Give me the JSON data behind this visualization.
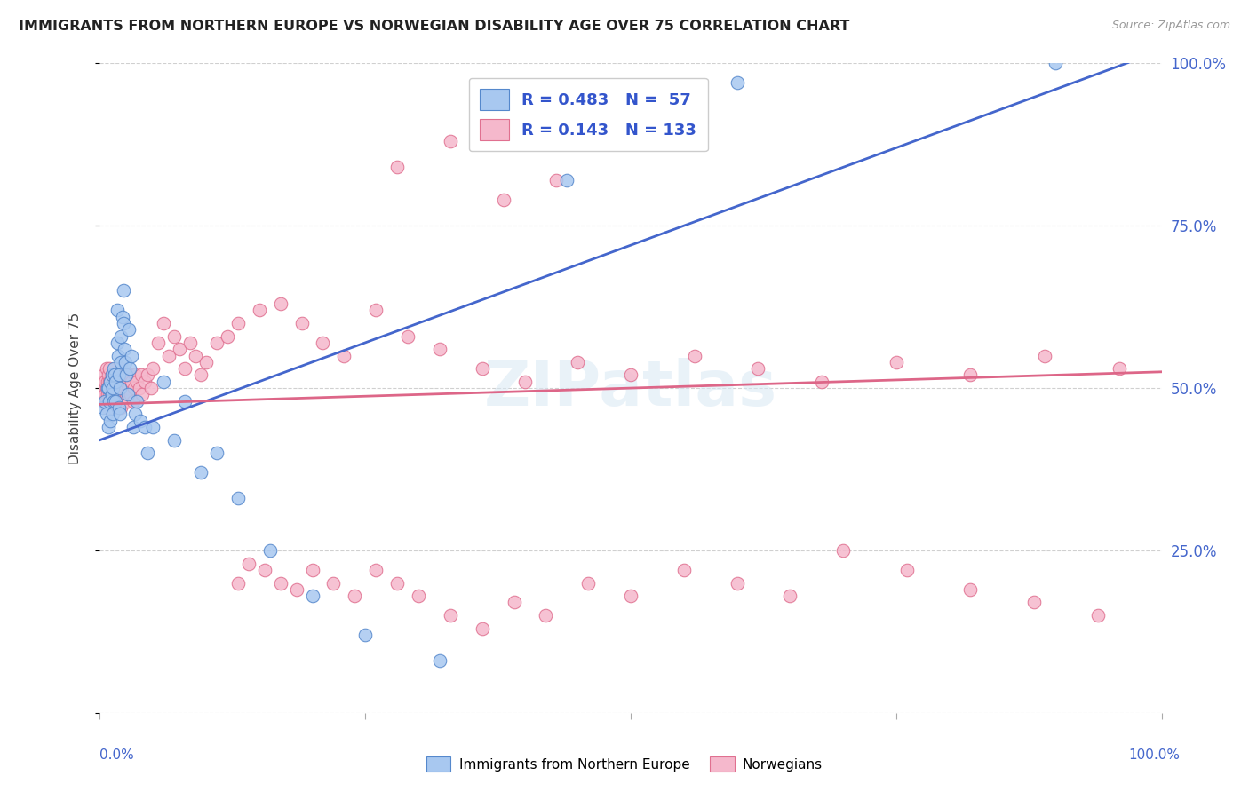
{
  "title": "IMMIGRANTS FROM NORTHERN EUROPE VS NORWEGIAN DISABILITY AGE OVER 75 CORRELATION CHART",
  "source": "Source: ZipAtlas.com",
  "ylabel": "Disability Age Over 75",
  "legend_R1": "0.483",
  "legend_N1": "57",
  "legend_R2": "0.143",
  "legend_N2": "133",
  "blue_fill": "#a8c8f0",
  "pink_fill": "#f5b8cc",
  "blue_edge": "#5588cc",
  "pink_edge": "#e07090",
  "blue_line": "#4466cc",
  "pink_line": "#dd6688",
  "watermark": "ZIPatlas",
  "blue_x": [
    0.003,
    0.005,
    0.006,
    0.007,
    0.008,
    0.008,
    0.009,
    0.01,
    0.01,
    0.011,
    0.011,
    0.012,
    0.012,
    0.013,
    0.013,
    0.014,
    0.015,
    0.015,
    0.016,
    0.016,
    0.017,
    0.018,
    0.018,
    0.019,
    0.019,
    0.02,
    0.02,
    0.021,
    0.022,
    0.022,
    0.023,
    0.024,
    0.025,
    0.026,
    0.027,
    0.028,
    0.03,
    0.031,
    0.033,
    0.035,
    0.038,
    0.042,
    0.045,
    0.05,
    0.06,
    0.07,
    0.08,
    0.095,
    0.11,
    0.13,
    0.16,
    0.2,
    0.25,
    0.32,
    0.44,
    0.6,
    0.9
  ],
  "blue_y": [
    0.47,
    0.48,
    0.46,
    0.5,
    0.44,
    0.5,
    0.48,
    0.51,
    0.45,
    0.49,
    0.52,
    0.46,
    0.5,
    0.48,
    0.53,
    0.52,
    0.48,
    0.51,
    0.57,
    0.62,
    0.55,
    0.47,
    0.52,
    0.46,
    0.5,
    0.54,
    0.58,
    0.61,
    0.6,
    0.65,
    0.56,
    0.54,
    0.52,
    0.49,
    0.59,
    0.53,
    0.55,
    0.44,
    0.46,
    0.48,
    0.45,
    0.44,
    0.4,
    0.44,
    0.51,
    0.42,
    0.48,
    0.37,
    0.4,
    0.33,
    0.25,
    0.18,
    0.12,
    0.08,
    0.82,
    0.97,
    1.0
  ],
  "pink_x": [
    0.001,
    0.002,
    0.003,
    0.003,
    0.004,
    0.004,
    0.005,
    0.005,
    0.006,
    0.006,
    0.006,
    0.007,
    0.007,
    0.007,
    0.008,
    0.008,
    0.008,
    0.009,
    0.009,
    0.009,
    0.01,
    0.01,
    0.01,
    0.011,
    0.011,
    0.012,
    0.012,
    0.012,
    0.013,
    0.013,
    0.013,
    0.014,
    0.014,
    0.015,
    0.015,
    0.015,
    0.016,
    0.016,
    0.017,
    0.017,
    0.018,
    0.018,
    0.019,
    0.019,
    0.02,
    0.02,
    0.02,
    0.021,
    0.021,
    0.022,
    0.022,
    0.023,
    0.023,
    0.024,
    0.025,
    0.025,
    0.026,
    0.027,
    0.028,
    0.029,
    0.03,
    0.031,
    0.032,
    0.033,
    0.035,
    0.037,
    0.039,
    0.04,
    0.042,
    0.045,
    0.048,
    0.05,
    0.055,
    0.06,
    0.065,
    0.07,
    0.075,
    0.08,
    0.085,
    0.09,
    0.095,
    0.1,
    0.11,
    0.12,
    0.13,
    0.15,
    0.17,
    0.19,
    0.21,
    0.23,
    0.26,
    0.29,
    0.32,
    0.36,
    0.4,
    0.45,
    0.5,
    0.56,
    0.62,
    0.68,
    0.75,
    0.82,
    0.89,
    0.96,
    0.13,
    0.14,
    0.155,
    0.17,
    0.185,
    0.2,
    0.22,
    0.24,
    0.26,
    0.28,
    0.3,
    0.33,
    0.36,
    0.39,
    0.42,
    0.46,
    0.5,
    0.55,
    0.6,
    0.65,
    0.7,
    0.76,
    0.82,
    0.88,
    0.94,
    0.28,
    0.33,
    0.38,
    0.43
  ],
  "pink_y": [
    0.5,
    0.49,
    0.51,
    0.48,
    0.5,
    0.52,
    0.49,
    0.51,
    0.48,
    0.5,
    0.53,
    0.49,
    0.51,
    0.47,
    0.5,
    0.52,
    0.48,
    0.51,
    0.49,
    0.53,
    0.48,
    0.51,
    0.47,
    0.5,
    0.52,
    0.49,
    0.51,
    0.47,
    0.5,
    0.52,
    0.48,
    0.49,
    0.51,
    0.48,
    0.5,
    0.52,
    0.49,
    0.51,
    0.48,
    0.5,
    0.49,
    0.51,
    0.48,
    0.5,
    0.47,
    0.49,
    0.53,
    0.48,
    0.51,
    0.49,
    0.51,
    0.48,
    0.5,
    0.52,
    0.49,
    0.51,
    0.48,
    0.5,
    0.52,
    0.49,
    0.51,
    0.48,
    0.5,
    0.52,
    0.51,
    0.5,
    0.52,
    0.49,
    0.51,
    0.52,
    0.5,
    0.53,
    0.57,
    0.6,
    0.55,
    0.58,
    0.56,
    0.53,
    0.57,
    0.55,
    0.52,
    0.54,
    0.57,
    0.58,
    0.6,
    0.62,
    0.63,
    0.6,
    0.57,
    0.55,
    0.62,
    0.58,
    0.56,
    0.53,
    0.51,
    0.54,
    0.52,
    0.55,
    0.53,
    0.51,
    0.54,
    0.52,
    0.55,
    0.53,
    0.2,
    0.23,
    0.22,
    0.2,
    0.19,
    0.22,
    0.2,
    0.18,
    0.22,
    0.2,
    0.18,
    0.15,
    0.13,
    0.17,
    0.15,
    0.2,
    0.18,
    0.22,
    0.2,
    0.18,
    0.25,
    0.22,
    0.19,
    0.17,
    0.15,
    0.84,
    0.88,
    0.79,
    0.82
  ]
}
